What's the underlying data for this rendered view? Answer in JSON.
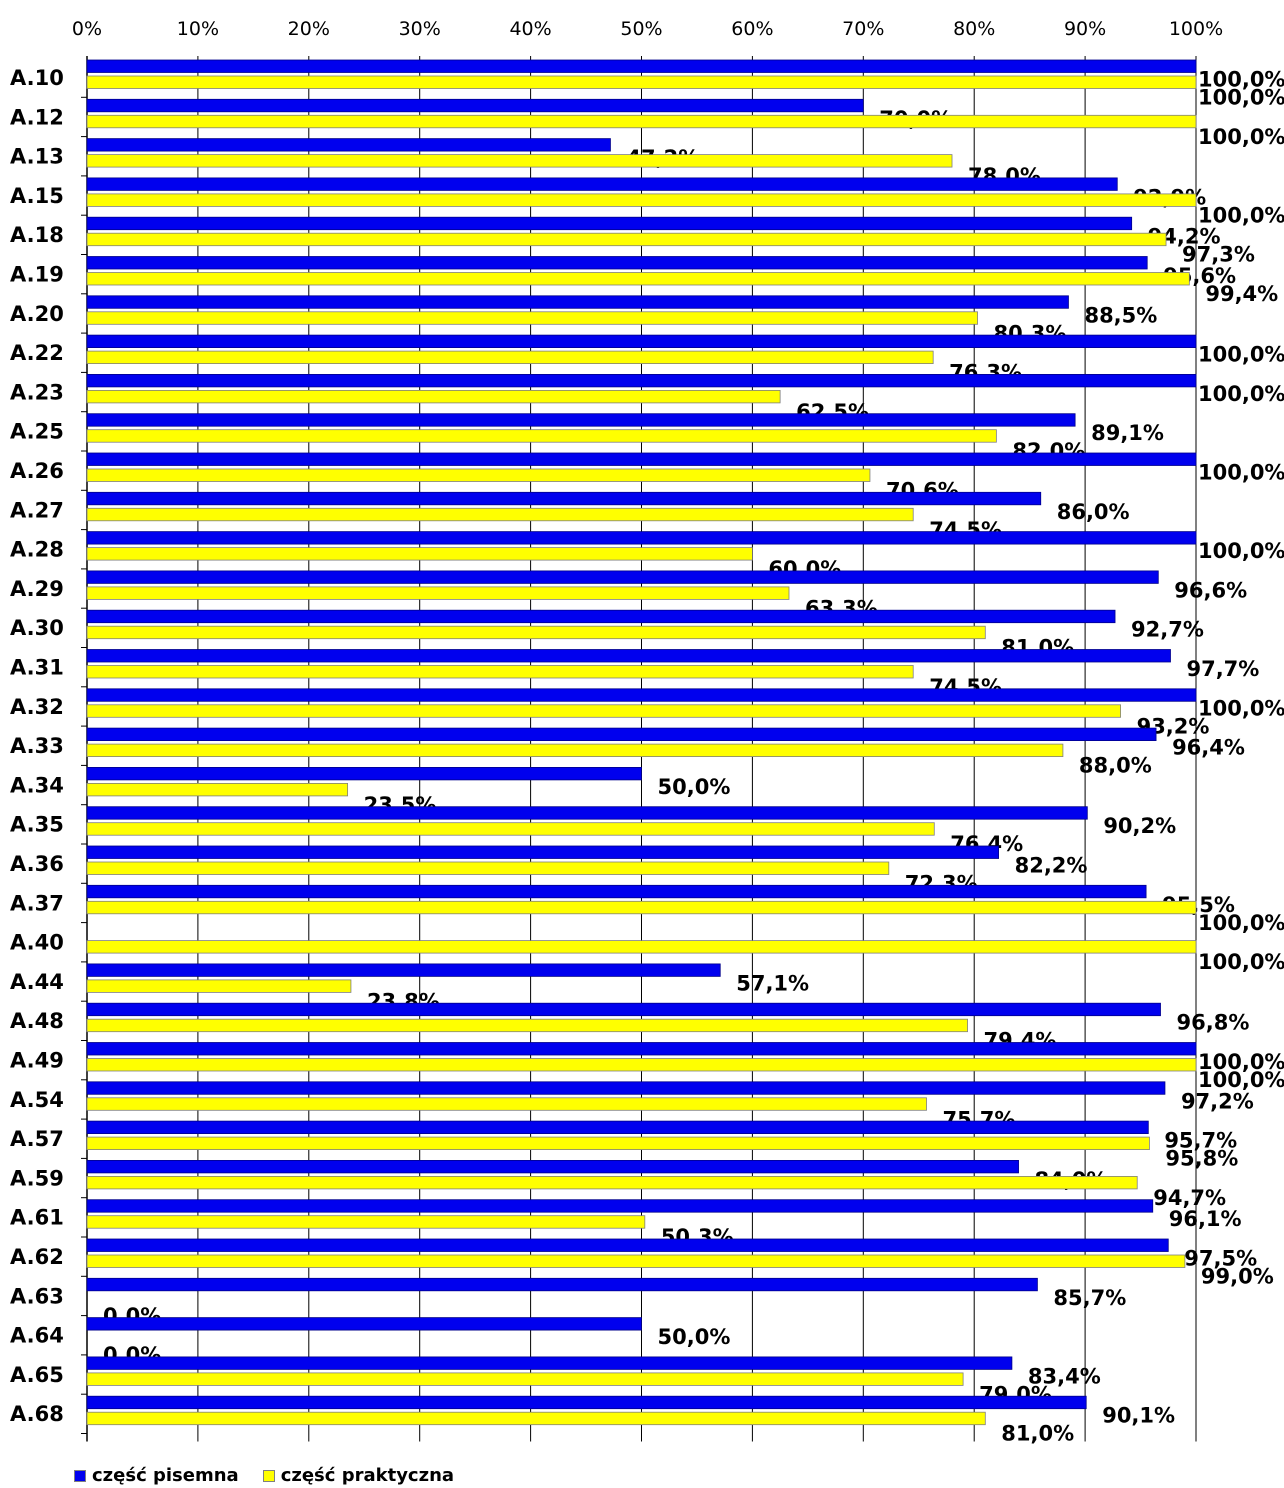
{
  "chart_data": {
    "type": "bar",
    "orientation": "horizontal",
    "categories": [
      "A.10",
      "A.12",
      "A.13",
      "A.15",
      "A.18",
      "A.19",
      "A.20",
      "A.22",
      "A.23",
      "A.25",
      "A.26",
      "A.27",
      "A.28",
      "A.29",
      "A.30",
      "A.31",
      "A.32",
      "A.33",
      "A.34",
      "A.35",
      "A.36",
      "A.37",
      "A.40",
      "A.44",
      "A.48",
      "A.49",
      "A.54",
      "A.57",
      "A.59",
      "A.61",
      "A.62",
      "A.63",
      "A.64",
      "A.65",
      "A.68"
    ],
    "series": [
      {
        "name": "część pisemna",
        "color": "#0000EE",
        "values": [
          100.0,
          70.0,
          47.2,
          92.9,
          94.2,
          95.6,
          88.5,
          100.0,
          100.0,
          89.1,
          100.0,
          86.0,
          100.0,
          96.6,
          92.7,
          97.7,
          100.0,
          96.4,
          50.0,
          90.2,
          82.2,
          95.5,
          null,
          57.1,
          96.8,
          100.0,
          97.2,
          95.7,
          84.0,
          96.1,
          97.5,
          85.7,
          50.0,
          83.4,
          90.1
        ],
        "labels": [
          "100,0%",
          "70,0%",
          "47,2%",
          "92,9%",
          "94,2%",
          "95,6%",
          "88,5%",
          "100,0%",
          "100,0%",
          "89,1%",
          "100,0%",
          "86,0%",
          "100,0%",
          "96,6%",
          "92,7%",
          "97,7%",
          "100,0%",
          "96,4%",
          "50,0%",
          "90,2%",
          "82,2%",
          "95,5%",
          "",
          "57,1%",
          "96,8%",
          "100,0%",
          "97,2%",
          "95,7%",
          "84,0%",
          "96,1%",
          "97,5%",
          "85,7%",
          "50,0%",
          "83,4%",
          "90,1%"
        ]
      },
      {
        "name": "część praktyczna",
        "color": "#FFFF00",
        "values": [
          100.0,
          100.0,
          78.0,
          100.0,
          97.3,
          99.4,
          80.3,
          76.3,
          62.5,
          82.0,
          70.6,
          74.5,
          60.0,
          63.3,
          81.0,
          74.5,
          93.2,
          88.0,
          23.5,
          76.4,
          72.3,
          100.0,
          100.0,
          23.8,
          79.4,
          100.0,
          75.7,
          95.8,
          94.7,
          50.3,
          99.0,
          0.0,
          0.0,
          79.0,
          81.0
        ],
        "labels": [
          "100,0%",
          "100,0%",
          "78,0%",
          "100,0%",
          "97,3%",
          "99,4%",
          "80,3%",
          "76,3%",
          "62,5%",
          "82,0%",
          "70,6%",
          "74,5%",
          "60,0%",
          "63,3%",
          "81,0%",
          "74,5%",
          "93,2%",
          "88,0%",
          "23,5%",
          "76,4%",
          "72,3%",
          "100,0%",
          "100,0%",
          "23,8%",
          "79,4%",
          "100,0%",
          "75,7%",
          "95,8%",
          "94,7%",
          "50,3%",
          "99,0%",
          "0,0%",
          "0,0%",
          "79,0%",
          "81,0%"
        ]
      }
    ],
    "xlim": [
      0,
      100
    ],
    "xticks": [
      "0%",
      "10%",
      "20%",
      "30%",
      "40%",
      "50%",
      "60%",
      "70%",
      "80%",
      "90%",
      "100%"
    ],
    "xaxis_position": "top",
    "grid": "vertical",
    "legend_position": "bottom-left",
    "title": "",
    "xlabel": "",
    "ylabel": ""
  }
}
